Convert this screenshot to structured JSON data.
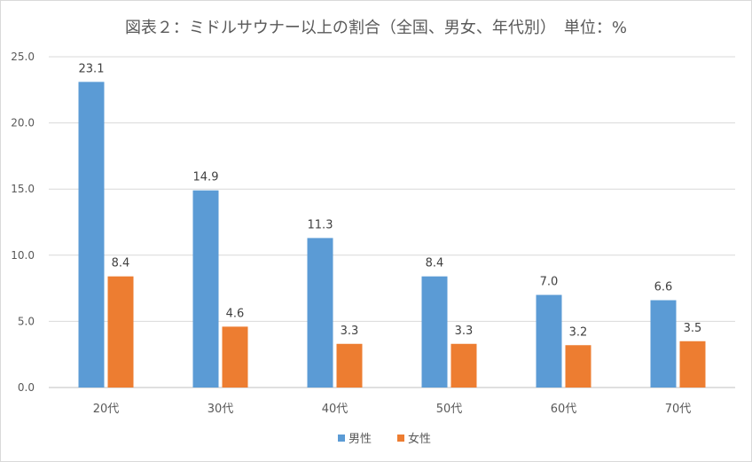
{
  "chart_data": {
    "type": "bar",
    "title": "図表２：ミドルサウナー以上の割合（全国、男女、年代別）　単位：%",
    "categories": [
      "20代",
      "30代",
      "40代",
      "50代",
      "60代",
      "70代"
    ],
    "series": [
      {
        "name": "男性",
        "color": "#5b9bd5",
        "values": [
          23.1,
          14.9,
          11.3,
          8.4,
          7.0,
          6.6
        ],
        "labels": [
          "23.1",
          "14.9",
          "11.3",
          "8.4",
          "7.0",
          "6.6"
        ]
      },
      {
        "name": "女性",
        "color": "#ed7d31",
        "values": [
          8.4,
          4.6,
          3.3,
          3.3,
          3.2,
          3.5
        ],
        "labels": [
          "8.4",
          "4.6",
          "3.3",
          "3.3",
          "3.2",
          "3.5"
        ]
      }
    ],
    "ylim": [
      0,
      25
    ],
    "yticks": [
      "0.0",
      "5.0",
      "10.0",
      "15.0",
      "20.0",
      "25.0"
    ],
    "xlabel": "",
    "ylabel": "",
    "grid": true,
    "legend": "bottom-center"
  }
}
